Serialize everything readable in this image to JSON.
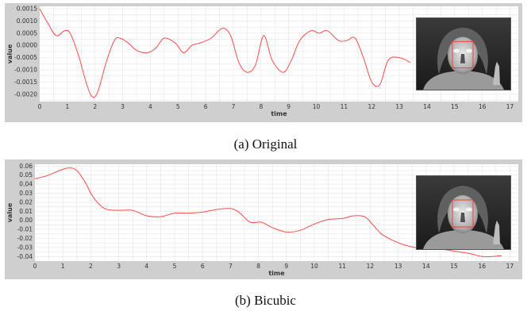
{
  "captions": {
    "a": "(a) Original",
    "b": "(b) Bicubic"
  },
  "colors": {
    "panel_bg": "#cfcfcf",
    "plot_bg": "#ffffff",
    "grid": "#e6e6e6",
    "line": "#ff4a4a",
    "roi": "#ff3b3b"
  },
  "icons": {
    "inset": "thermal-face-image"
  },
  "chart_data": [
    {
      "type": "line",
      "title": "",
      "xlabel": "time",
      "ylabel": "value",
      "xlim": [
        0,
        17.3
      ],
      "ylim": [
        -0.0023,
        0.0016
      ],
      "grid": true,
      "legend": "none",
      "xticks": [
        "0",
        "1",
        "2",
        "3",
        "4",
        "5",
        "6",
        "7",
        "8",
        "9",
        "10",
        "11",
        "12",
        "13",
        "14",
        "15",
        "16",
        "17"
      ],
      "yticks": [
        "0.0015",
        "0.0010",
        "0.0005",
        "0.0000",
        "-0.0005",
        "-0.0010",
        "-0.0015",
        "-0.0020"
      ],
      "ytick_values": [
        0.0015,
        0.001,
        0.0005,
        0,
        -0.0005,
        -0.001,
        -0.0015,
        -0.002
      ],
      "series": [
        {
          "x": [
            0,
            0.3,
            0.6,
            0.9,
            1.1,
            1.4,
            1.7,
            1.9,
            2.1,
            2.4,
            2.7,
            2.9,
            3.2,
            3.5,
            3.9,
            4.2,
            4.5,
            4.9,
            5.2,
            5.5,
            5.8,
            6.2,
            6.6,
            6.9,
            7.2,
            7.5,
            7.8,
            8.1,
            8.4,
            8.8,
            9.1,
            9.4,
            9.8,
            10.1,
            10.4,
            10.8,
            11.1,
            11.4,
            11.7,
            12.0,
            12.3,
            12.6,
            13.0,
            13.4
          ],
          "y": [
            0.0015,
            0.0009,
            0.0004,
            0.0006,
            0.0005,
            -0.0004,
            -0.0016,
            -0.0021,
            -0.0019,
            -0.0007,
            0.0002,
            0.0003,
            0.0001,
            -0.0002,
            -0.0003,
            -0.0001,
            0.0003,
            0.0001,
            -0.0003,
            0.0,
            0.0001,
            0.0003,
            0.0007,
            0.0004,
            -0.0007,
            -0.0011,
            -0.0008,
            0.0004,
            -0.0006,
            -0.0011,
            -0.0006,
            0.0002,
            0.0006,
            0.0005,
            0.0006,
            0.0002,
            0.0002,
            0.0003,
            -0.0005,
            -0.0015,
            -0.0016,
            -0.0006,
            -0.0005,
            -0.0007
          ]
        }
      ]
    },
    {
      "type": "line",
      "title": "",
      "xlabel": "time",
      "ylabel": "value",
      "xlim": [
        0,
        17.3
      ],
      "ylim": [
        -0.045,
        0.062
      ],
      "grid": true,
      "legend": "none",
      "xticks": [
        "0",
        "1",
        "2",
        "3",
        "4",
        "5",
        "6",
        "7",
        "8",
        "9",
        "10",
        "11",
        "12",
        "13",
        "14",
        "15",
        "16",
        "17"
      ],
      "yticks": [
        "0.06",
        "0.05",
        "0.04",
        "0.03",
        "0.02",
        "0.01",
        "0.00",
        "-0.01",
        "-0.02",
        "-0.03",
        "-0.04"
      ],
      "ytick_values": [
        0.06,
        0.05,
        0.04,
        0.03,
        0.02,
        0.01,
        0,
        -0.01,
        -0.02,
        -0.03,
        -0.04
      ],
      "series": [
        {
          "x": [
            0,
            0.4,
            0.8,
            1.2,
            1.5,
            1.8,
            2.1,
            2.5,
            3.0,
            3.5,
            4.0,
            4.5,
            5.0,
            5.5,
            6.0,
            6.5,
            7.0,
            7.3,
            7.7,
            8.1,
            8.5,
            9.0,
            9.5,
            10.0,
            10.5,
            11.0,
            11.4,
            11.8,
            12.1,
            12.4,
            12.8,
            13.2,
            13.6,
            14.0,
            14.4,
            14.8,
            15.2,
            15.6,
            16.0,
            16.4,
            16.7
          ],
          "y": [
            0.046,
            0.049,
            0.054,
            0.058,
            0.055,
            0.042,
            0.025,
            0.013,
            0.011,
            0.011,
            0.005,
            0.004,
            0.008,
            0.008,
            0.009,
            0.012,
            0.013,
            0.009,
            -0.002,
            -0.002,
            -0.008,
            -0.013,
            -0.011,
            -0.004,
            0.001,
            0.002,
            0.005,
            0.004,
            -0.005,
            -0.015,
            -0.022,
            -0.027,
            -0.03,
            -0.031,
            -0.031,
            -0.033,
            -0.035,
            -0.037,
            -0.04,
            -0.04,
            -0.039
          ]
        }
      ]
    }
  ]
}
